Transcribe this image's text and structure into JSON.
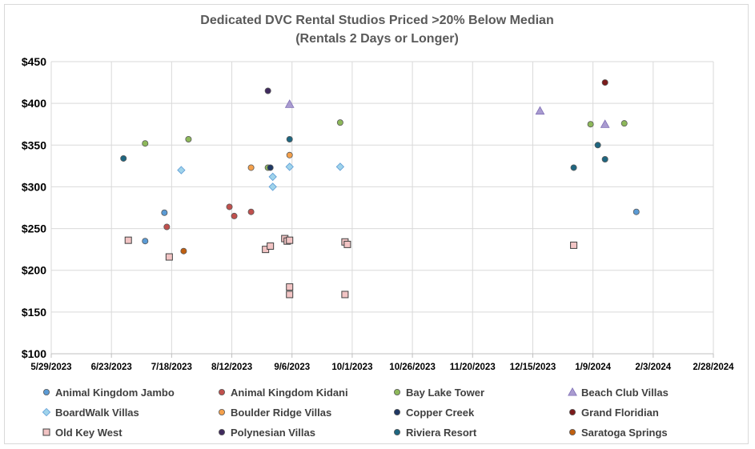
{
  "chart_data": {
    "type": "scatter",
    "title": "Dedicated DVC Rental Studios Priced >20% Below Median",
    "subtitle": "(Rentals 2 Days or Longer)",
    "xaxis": {
      "ticks": [
        "5/29/2023",
        "6/23/2023",
        "7/18/2023",
        "8/12/2023",
        "9/6/2023",
        "10/1/2023",
        "10/26/2023",
        "11/20/2023",
        "12/15/2023",
        "1/9/2024",
        "2/3/2024",
        "2/28/2024"
      ],
      "range": [
        "2023-05-29",
        "2024-02-28"
      ]
    },
    "yaxis": {
      "ticks": [
        "$100",
        "$150",
        "$200",
        "$250",
        "$300",
        "$350",
        "$400",
        "$450"
      ],
      "range": [
        100,
        450
      ]
    },
    "grid": true,
    "legend_position": "bottom",
    "series": [
      {
        "name": "Animal Kingdom Jambo",
        "marker": "circle",
        "color": "#5b9bd5",
        "points": [
          [
            "2023-07-07",
            235
          ],
          [
            "2023-07-15",
            269
          ],
          [
            "2024-01-27",
            270
          ]
        ]
      },
      {
        "name": "Animal Kingdom Kidani",
        "marker": "circle",
        "color": "#c0504d",
        "points": [
          [
            "2023-07-16",
            252
          ],
          [
            "2023-08-11",
            276
          ],
          [
            "2023-08-13",
            265
          ],
          [
            "2023-08-20",
            270
          ]
        ]
      },
      {
        "name": "Bay Lake Tower",
        "marker": "circle",
        "color": "#8db85a",
        "points": [
          [
            "2023-07-07",
            352
          ],
          [
            "2023-07-25",
            357
          ],
          [
            "2023-08-27",
            323
          ],
          [
            "2023-09-26",
            377
          ],
          [
            "2024-01-08",
            375
          ],
          [
            "2024-01-22",
            376
          ]
        ]
      },
      {
        "name": "Beach Club Villas",
        "marker": "triangle",
        "color": "#a99bd0",
        "points": [
          [
            "2023-09-05",
            399
          ],
          [
            "2023-12-18",
            391
          ],
          [
            "2024-01-14",
            375
          ]
        ]
      },
      {
        "name": "BoardWalk Villas",
        "marker": "diamond",
        "color": "#9fd3eb",
        "points": [
          [
            "2023-07-22",
            320
          ],
          [
            "2023-08-29",
            312
          ],
          [
            "2023-08-29",
            300
          ],
          [
            "2023-09-05",
            324
          ],
          [
            "2023-09-26",
            324
          ]
        ]
      },
      {
        "name": "Boulder Ridge Villas",
        "marker": "circle",
        "color": "#f4a04b",
        "points": [
          [
            "2023-08-20",
            323
          ],
          [
            "2023-09-05",
            338
          ]
        ]
      },
      {
        "name": "Copper Creek",
        "marker": "circle",
        "color": "#1f3864",
        "points": [
          [
            "2023-08-28",
            323
          ]
        ]
      },
      {
        "name": "Grand Floridian",
        "marker": "circle",
        "color": "#7b1b1b",
        "points": [
          [
            "2024-01-14",
            425
          ]
        ]
      },
      {
        "name": "Old Key West",
        "marker": "square",
        "color": "#f2c4c4",
        "points": [
          [
            "2023-06-30",
            236
          ],
          [
            "2023-07-17",
            216
          ],
          [
            "2023-08-26",
            225
          ],
          [
            "2023-08-28",
            229
          ],
          [
            "2023-09-03",
            238
          ],
          [
            "2023-09-04",
            235
          ],
          [
            "2023-09-05",
            236
          ],
          [
            "2023-09-05",
            180
          ],
          [
            "2023-09-05",
            171
          ],
          [
            "2023-09-28",
            234
          ],
          [
            "2023-09-29",
            231
          ],
          [
            "2023-09-28",
            171
          ],
          [
            "2024-01-01",
            230
          ]
        ]
      },
      {
        "name": "Polynesian Villas",
        "marker": "circle",
        "color": "#3f2a5e",
        "points": [
          [
            "2023-08-27",
            415
          ]
        ]
      },
      {
        "name": "Riviera Resort",
        "marker": "circle",
        "color": "#1e6680",
        "points": [
          [
            "2023-06-28",
            334
          ],
          [
            "2023-09-05",
            357
          ],
          [
            "2024-01-01",
            323
          ],
          [
            "2024-01-11",
            350
          ],
          [
            "2024-01-14",
            333
          ]
        ]
      },
      {
        "name": "Saratoga Springs",
        "marker": "circle",
        "color": "#c05f10",
        "points": [
          [
            "2023-07-23",
            223
          ]
        ]
      }
    ]
  }
}
